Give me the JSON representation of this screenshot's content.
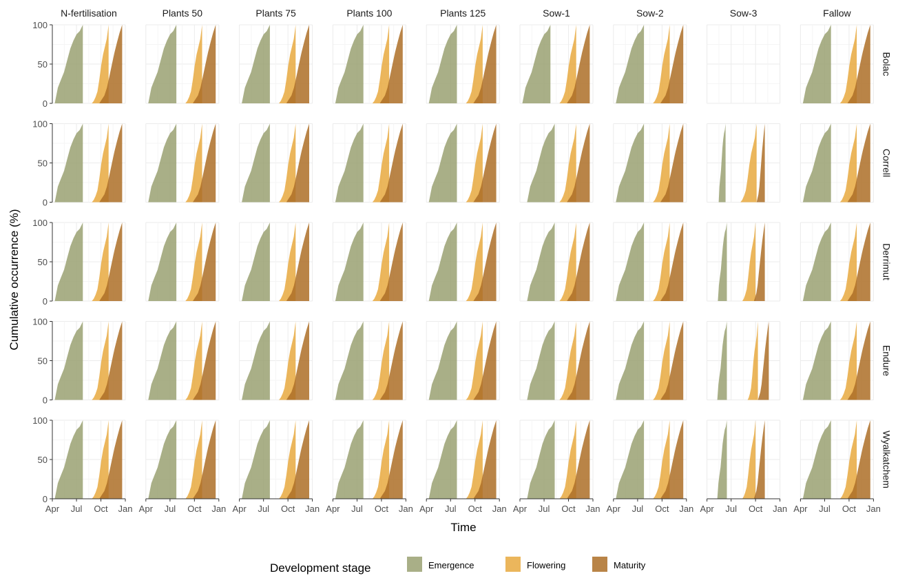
{
  "chart_data": {
    "type": "area",
    "xlabel": "Time",
    "ylabel": "Cumulative occurrence (%)",
    "columns": [
      "N-fertilisation",
      "Plants 50",
      "Plants 75",
      "Plants 100",
      "Plants 125",
      "Sow-1",
      "Sow-2",
      "Sow-3",
      "Fallow"
    ],
    "rows": [
      "Bolac",
      "Correll",
      "Derrimut",
      "Endure",
      "Wyalkatchem"
    ],
    "x_domain": [
      "Apr",
      "Jan"
    ],
    "x_ticks": [
      "Apr",
      "Jul",
      "Oct",
      "Jan"
    ],
    "ylim": [
      0,
      100
    ],
    "y_ticks": [
      "0",
      "50",
      "100"
    ],
    "grid": true,
    "legend": {
      "title": "Development stage",
      "position": "bottom",
      "items": [
        {
          "name": "Emergence",
          "color": "#9aa172"
        },
        {
          "name": "Flowering",
          "color": "#e8a93f"
        },
        {
          "name": "Maturity",
          "color": "#ad6e27"
        }
      ]
    },
    "series_shapes": {
      "Emergence": {
        "start": "Apr 10",
        "end": "Jul 25",
        "values": [
          0,
          20,
          30,
          40,
          55,
          70,
          80,
          88,
          92,
          100
        ]
      },
      "Flowering": {
        "start": "Aug 28",
        "end": "Oct 30",
        "values": [
          0,
          3,
          8,
          15,
          30,
          48,
          62,
          72,
          82,
          100
        ]
      },
      "Maturity": {
        "start": "Sep 25",
        "end": "Dec 20",
        "values": [
          0,
          5,
          10,
          20,
          35,
          50,
          65,
          78,
          90,
          100
        ]
      }
    },
    "panel_overrides": [
      {
        "row": "Bolac",
        "column": "Sow-3",
        "empty": true
      },
      {
        "row": "Correll",
        "column": "Sow-1",
        "Emergence": {
          "start": "Apr 28",
          "end": "Aug 10"
        }
      },
      {
        "row": "Correll",
        "column": "Sow-3",
        "Emergence": {
          "start": "May 15",
          "end": "Jun 10"
        },
        "Flowering": {
          "start": "Aug 5",
          "end": "Oct 5"
        },
        "Maturity": {
          "start": "Oct 5",
          "end": "Nov 5"
        }
      },
      {
        "row": "Derrimut",
        "column": "Sow-1",
        "Emergence": {
          "start": "Apr 28",
          "end": "Aug 10"
        }
      },
      {
        "row": "Derrimut",
        "column": "Sow-3",
        "Emergence": {
          "start": "May 12",
          "end": "Jun 15"
        },
        "Flowering": {
          "start": "Aug 12",
          "end": "Oct 1"
        },
        "Maturity": {
          "start": "Sep 25",
          "end": "Nov 5"
        }
      },
      {
        "row": "Endure",
        "column": "Sow-1",
        "Emergence": {
          "start": "Apr 28",
          "end": "Aug 10"
        }
      },
      {
        "row": "Endure",
        "column": "Sow-3",
        "Emergence": {
          "start": "May 10",
          "end": "Jun 15"
        },
        "Flowering": {
          "start": "Sep 1",
          "end": "Oct 10"
        },
        "Maturity": {
          "start": "Oct 10",
          "end": "Nov 20"
        }
      },
      {
        "row": "Wyalkatchem",
        "column": "Sow-1",
        "Emergence": {
          "start": "Apr 28",
          "end": "Aug 10"
        }
      },
      {
        "row": "Wyalkatchem",
        "column": "Sow-3",
        "Emergence": {
          "start": "May 10",
          "end": "Jun 15"
        },
        "Flowering": {
          "start": "Aug 12",
          "end": "Oct 1"
        },
        "Maturity": {
          "start": "Sep 25",
          "end": "Nov 5"
        }
      }
    ]
  }
}
